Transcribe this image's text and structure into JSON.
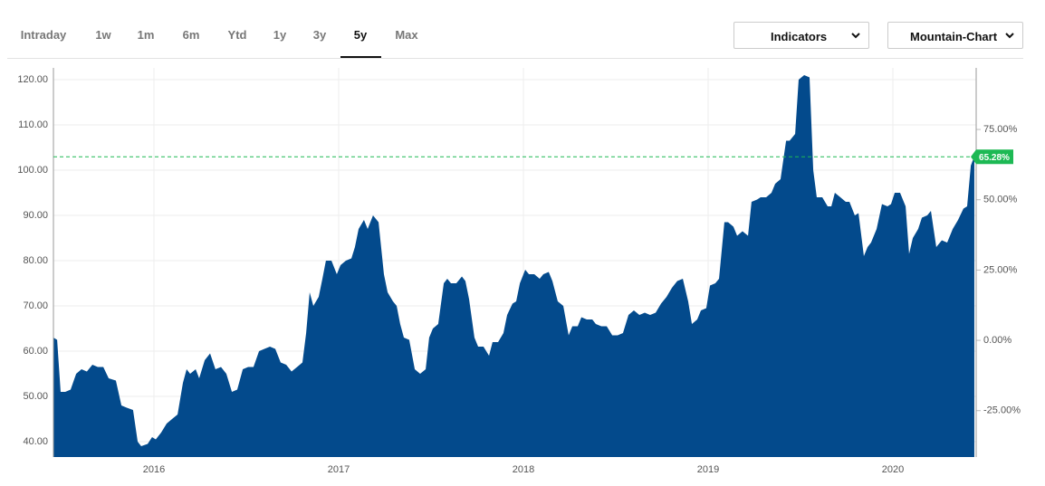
{
  "tabs": [
    "Intraday",
    "1w",
    "1m",
    "6m",
    "Ytd",
    "1y",
    "3y",
    "5y",
    "Max"
  ],
  "buttons": [
    "Indicators",
    "Mountain-Chart"
  ],
  "chart_data": {
    "type": "area",
    "series": [
      {
        "color": "#034a8c",
        "x": [
          2015.456,
          2015.476,
          2015.495,
          2015.52,
          2015.549,
          2015.579,
          2015.608,
          2015.637,
          2015.667,
          2015.696,
          2015.726,
          2015.755,
          2015.794,
          2015.824,
          2015.853,
          2015.887,
          2015.912,
          2015.931,
          2015.966,
          2015.99,
          2016.01,
          2016.039,
          2016.069,
          2016.098,
          2016.128,
          2016.157,
          2016.177,
          2016.196,
          2016.226,
          2016.245,
          2016.275,
          2016.304,
          2016.333,
          2016.363,
          2016.392,
          2016.422,
          2016.451,
          2016.481,
          2016.51,
          2016.539,
          2016.569,
          2016.598,
          2016.628,
          2016.657,
          2016.686,
          2016.716,
          2016.745,
          2016.775,
          2016.804,
          2016.824,
          2016.843,
          2016.863,
          2016.892,
          2016.912,
          2016.931,
          2016.961,
          2016.99,
          2017.01,
          2017.039,
          2017.069,
          2017.088,
          2017.108,
          2017.137,
          2017.157,
          2017.186,
          2017.216,
          2017.245,
          2017.265,
          2017.294,
          2017.314,
          2017.333,
          2017.353,
          2017.382,
          2017.412,
          2017.441,
          2017.471,
          2017.49,
          2017.51,
          2017.539,
          2017.569,
          2017.588,
          2017.608,
          2017.637,
          2017.667,
          2017.686,
          2017.706,
          2017.735,
          2017.755,
          2017.784,
          2017.814,
          2017.833,
          2017.863,
          2017.892,
          2017.912,
          2017.941,
          2017.961,
          2017.981,
          2018.01,
          2018.03,
          2018.059,
          2018.088,
          2018.108,
          2018.137,
          2018.157,
          2018.186,
          2018.216,
          2018.245,
          2018.265,
          2018.294,
          2018.314,
          2018.343,
          2018.373,
          2018.392,
          2018.422,
          2018.451,
          2018.481,
          2018.51,
          2018.539,
          2018.569,
          2018.598,
          2018.628,
          2018.657,
          2018.686,
          2018.716,
          2018.745,
          2018.775,
          2018.804,
          2018.833,
          2018.863,
          2018.892,
          2018.912,
          2018.941,
          2018.961,
          2018.99,
          2019.01,
          2019.039,
          2019.059,
          2019.088,
          2019.108,
          2019.137,
          2019.157,
          2019.186,
          2019.216,
          2019.235,
          2019.265,
          2019.284,
          2019.314,
          2019.343,
          2019.363,
          2019.392,
          2019.422,
          2019.441,
          2019.471,
          2019.49,
          2019.52,
          2019.549,
          2019.569,
          2019.588,
          2019.618,
          2019.647,
          2019.667,
          2019.686,
          2019.716,
          2019.745,
          2019.765,
          2019.794,
          2019.814,
          2019.843,
          2019.863,
          2019.882,
          2019.912,
          2019.941,
          2019.971,
          2019.99,
          2020.01,
          2020.039,
          2020.069,
          2020.088,
          2020.108,
          2020.137,
          2020.157,
          2020.186,
          2020.206,
          2020.235,
          2020.265,
          2020.294,
          2020.324,
          2020.353,
          2020.382,
          2020.402,
          2020.422,
          2020.441
        ],
        "values": [
          63,
          62.5,
          51,
          51,
          51.5,
          55,
          56,
          55.5,
          57,
          56.5,
          56.5,
          54,
          53.5,
          48,
          47.5,
          47,
          40,
          39,
          39.5,
          41,
          40.5,
          42,
          44,
          45,
          46,
          53,
          56,
          55,
          56,
          54,
          58,
          59.5,
          56,
          56.5,
          55,
          51,
          51.5,
          56,
          56.5,
          56.5,
          60,
          60.5,
          61,
          60.5,
          57.5,
          57,
          55.5,
          56.5,
          57.5,
          64,
          73,
          70,
          72,
          76,
          80,
          80,
          77,
          79,
          80,
          80.5,
          83,
          87,
          89,
          87,
          90,
          88.5,
          77,
          73,
          71,
          70,
          66,
          63,
          62.5,
          56,
          55,
          56,
          63,
          65,
          66,
          75,
          76,
          75,
          75,
          76.5,
          75.5,
          71.5,
          63,
          61,
          61,
          59,
          62,
          62,
          64,
          68,
          70.5,
          71,
          75,
          78,
          77,
          77,
          76,
          77,
          77.5,
          75.5,
          71,
          70,
          63.5,
          65.5,
          65.5,
          67.5,
          67,
          67,
          66,
          65.5,
          65.5,
          63.5,
          63.5,
          64,
          68,
          69,
          68,
          68.5,
          68,
          68.5,
          70.5,
          72,
          74,
          75.5,
          76,
          71,
          66,
          67,
          69,
          69.5,
          74.5,
          75,
          76,
          88.5,
          88.5,
          87.5,
          85.5,
          86.5,
          85.5,
          93,
          93.5,
          94,
          94,
          95,
          97,
          98,
          106.5,
          106.5,
          108,
          120,
          121,
          120.5,
          100,
          94,
          94,
          92,
          92,
          95,
          94,
          93,
          93,
          90,
          90.5,
          81,
          83,
          84,
          87,
          92.5,
          92,
          92.5,
          95,
          95,
          92,
          81.5,
          85,
          87,
          89.5,
          90,
          91,
          83,
          84.5,
          84,
          87,
          89,
          91.5,
          92,
          101,
          103.1
        ]
      }
    ],
    "xlim": [
      2015.456,
      2020.451
    ],
    "xticks": [
      2016,
      2017,
      2018,
      2019,
      2020
    ],
    "ylim": [
      36.6,
      122.6
    ],
    "yticks": [
      {
        "value": 40,
        "label": "40.00"
      },
      {
        "value": 50,
        "label": "50.00"
      },
      {
        "value": 60,
        "label": "60.00"
      },
      {
        "value": 70,
        "label": "70.00"
      },
      {
        "value": 80,
        "label": "80.00"
      },
      {
        "value": 90,
        "label": "90.00"
      },
      {
        "value": 100,
        "label": "100.00"
      },
      {
        "value": 110,
        "label": "110.00"
      },
      {
        "value": 120,
        "label": "120.00"
      }
    ],
    "y2lim": [
      -41.5,
      96.9
    ],
    "y2ticks": [
      {
        "value": -25,
        "label": "-25.00%"
      },
      {
        "value": 0,
        "label": "0.00%"
      },
      {
        "value": 25,
        "label": "25.00%"
      },
      {
        "value": 50,
        "label": "50.00%"
      },
      {
        "value": 75,
        "label": "75.00%"
      }
    ],
    "reference_line": {
      "value": 65.28,
      "label": "65.28%",
      "axis": "y2",
      "color": "#1db954"
    },
    "grid": true
  }
}
